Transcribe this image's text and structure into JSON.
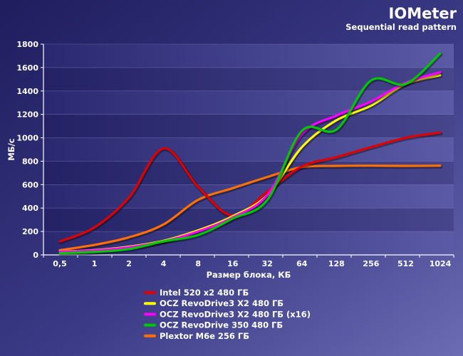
{
  "chart_data": {
    "type": "line",
    "title": "IOMeter",
    "subtitle": "Sequential read pattern",
    "xlabel": "Размер блока, КБ",
    "ylabel": "МБ/с",
    "categories": [
      "0,5",
      "1",
      "2",
      "4",
      "8",
      "16",
      "32",
      "64",
      "128",
      "256",
      "512",
      "1024"
    ],
    "ylim": [
      0,
      1800
    ],
    "yticks": [
      0,
      200,
      400,
      600,
      800,
      1000,
      1200,
      1400,
      1600,
      1800
    ],
    "grid": true,
    "legend_position": "bottom",
    "series": [
      {
        "name": "Intel 520 x2 480 ГБ",
        "color": "#e00000",
        "values": [
          115,
          235,
          490,
          910,
          580,
          335,
          540,
          755,
          835,
          920,
          1000,
          1045
        ]
      },
      {
        "name": "OCZ RevoDrive3 X2 480 ГБ",
        "color": "#ffff00",
        "values": [
          30,
          40,
          70,
          120,
          210,
          330,
          510,
          920,
          1150,
          1275,
          1460,
          1535
        ]
      },
      {
        "name": "OCZ RevoDrive3 X2 480 ГБ (x16)",
        "color": "#ff00ff",
        "values": [
          28,
          38,
          65,
          115,
          200,
          320,
          510,
          1030,
          1190,
          1310,
          1470,
          1560
        ]
      },
      {
        "name": "OCZ RevoDrive 350 480 ГБ",
        "color": "#00c800",
        "values": [
          15,
          25,
          50,
          115,
          170,
          310,
          470,
          1060,
          1070,
          1490,
          1460,
          1720
        ]
      },
      {
        "name": "Plextor M6e 256 ГБ",
        "color": "#ff7000",
        "values": [
          40,
          85,
          150,
          260,
          470,
          570,
          665,
          750,
          760,
          762,
          760,
          762
        ]
      }
    ]
  }
}
